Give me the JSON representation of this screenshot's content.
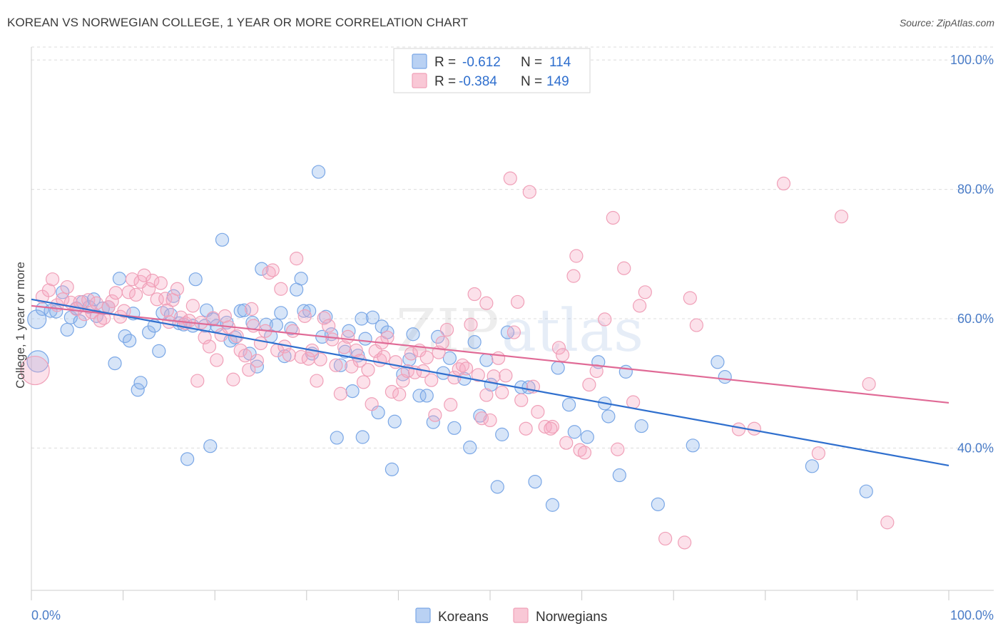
{
  "title": "KOREAN VS NORWEGIAN COLLEGE, 1 YEAR OR MORE CORRELATION CHART",
  "source": "Source: ZipAtlas.com",
  "watermark": {
    "zip": "ZIP",
    "atlas": "atlas"
  },
  "colors": {
    "korean": "#7aa7e6",
    "korean_line": "#2f6fce",
    "norwegian": "#f0a0b8",
    "norwegian_line": "#e06a96",
    "tick_label": "#4a7cc7"
  },
  "legend": {
    "rows": [
      {
        "r_label": "R =",
        "r_value": "-0.612",
        "n_label": "N =",
        "n_value": "114"
      },
      {
        "r_label": "R =",
        "r_value": "-0.384",
        "n_label": "N =",
        "n_value": "149"
      }
    ]
  },
  "bottom_legend": [
    "Koreans",
    "Norwegians"
  ],
  "chart_data": {
    "type": "scatter",
    "xlabel": "",
    "ylabel": "College, 1 year or more",
    "xlim": [
      0,
      100
    ],
    "ylim": [
      18,
      102
    ],
    "x_tick_labels": [
      "0.0%",
      "100.0%"
    ],
    "y_ticks": [
      40,
      60,
      80,
      100
    ],
    "y_tick_labels": [
      "40.0%",
      "60.0%",
      "80.0%",
      "100.0%"
    ],
    "grid": "horizontal dashed",
    "legend_position": "top-center",
    "series": [
      {
        "name": "Koreans",
        "r": -0.612,
        "n": 114,
        "trend": {
          "x": [
            0,
            100
          ],
          "y": [
            63.0,
            37.3
          ]
        },
        "points": [
          [
            0.6,
            59.9
          ],
          [
            0.7,
            53.4
          ],
          [
            1.2,
            61.5
          ],
          [
            2.1,
            61.2
          ],
          [
            2.7,
            61.1
          ],
          [
            3.4,
            64.1
          ],
          [
            3.9,
            58.3
          ],
          [
            4.3,
            60.2
          ],
          [
            4.9,
            61.6
          ],
          [
            5.3,
            59.6
          ],
          [
            5.6,
            62.6
          ],
          [
            6.3,
            61.8
          ],
          [
            6.8,
            63.0
          ],
          [
            7.1,
            60.4
          ],
          [
            7.8,
            61.6
          ],
          [
            8.4,
            61.8
          ],
          [
            9.1,
            53.1
          ],
          [
            9.6,
            66.2
          ],
          [
            10.2,
            57.3
          ],
          [
            10.7,
            56.6
          ],
          [
            11.1,
            60.8
          ],
          [
            11.6,
            49.0
          ],
          [
            11.9,
            50.1
          ],
          [
            12.8,
            57.9
          ],
          [
            13.4,
            58.9
          ],
          [
            13.9,
            55.0
          ],
          [
            14.3,
            60.9
          ],
          [
            15.2,
            60.6
          ],
          [
            15.5,
            63.5
          ],
          [
            16.1,
            59.3
          ],
          [
            16.6,
            59.1
          ],
          [
            17.0,
            38.3
          ],
          [
            17.6,
            58.9
          ],
          [
            17.9,
            66.1
          ],
          [
            18.9,
            58.9
          ],
          [
            19.1,
            61.3
          ],
          [
            19.5,
            40.3
          ],
          [
            19.8,
            59.9
          ],
          [
            20.2,
            58.9
          ],
          [
            20.8,
            72.2
          ],
          [
            21.3,
            59.4
          ],
          [
            21.7,
            56.6
          ],
          [
            22.2,
            57.1
          ],
          [
            22.8,
            61.2
          ],
          [
            23.2,
            61.3
          ],
          [
            23.8,
            54.6
          ],
          [
            24.1,
            59.4
          ],
          [
            24.6,
            52.6
          ],
          [
            25.1,
            67.7
          ],
          [
            25.6,
            59.1
          ],
          [
            26.1,
            57.3
          ],
          [
            26.7,
            59.0
          ],
          [
            27.2,
            60.9
          ],
          [
            27.6,
            54.2
          ],
          [
            28.3,
            58.5
          ],
          [
            28.9,
            64.5
          ],
          [
            29.4,
            66.2
          ],
          [
            29.7,
            61.2
          ],
          [
            30.3,
            61.2
          ],
          [
            30.6,
            54.6
          ],
          [
            31.3,
            82.7
          ],
          [
            31.7,
            57.2
          ],
          [
            32.1,
            60.3
          ],
          [
            32.7,
            57.6
          ],
          [
            33.3,
            41.6
          ],
          [
            33.7,
            52.8
          ],
          [
            34.2,
            54.9
          ],
          [
            34.6,
            58.1
          ],
          [
            35.0,
            48.8
          ],
          [
            35.6,
            54.3
          ],
          [
            36.1,
            41.7
          ],
          [
            36.4,
            56.9
          ],
          [
            37.2,
            60.2
          ],
          [
            37.8,
            45.5
          ],
          [
            38.2,
            58.8
          ],
          [
            38.8,
            57.9
          ],
          [
            39.3,
            36.7
          ],
          [
            39.6,
            44.1
          ],
          [
            40.5,
            51.4
          ],
          [
            41.2,
            53.7
          ],
          [
            41.6,
            57.6
          ],
          [
            42.3,
            48.1
          ],
          [
            43.1,
            48.1
          ],
          [
            43.8,
            44.0
          ],
          [
            44.3,
            57.2
          ],
          [
            44.9,
            51.6
          ],
          [
            45.6,
            53.9
          ],
          [
            46.1,
            43.1
          ],
          [
            47.2,
            50.7
          ],
          [
            47.8,
            40.1
          ],
          [
            48.3,
            56.4
          ],
          [
            48.9,
            45.0
          ],
          [
            49.6,
            53.6
          ],
          [
            50.1,
            49.8
          ],
          [
            50.8,
            34.0
          ],
          [
            51.3,
            42.1
          ],
          [
            51.9,
            57.9
          ],
          [
            53.4,
            49.4
          ],
          [
            54.2,
            49.4
          ],
          [
            54.9,
            34.8
          ],
          [
            56.8,
            31.2
          ],
          [
            57.4,
            52.4
          ],
          [
            58.6,
            46.7
          ],
          [
            59.2,
            42.5
          ],
          [
            60.6,
            41.7
          ],
          [
            61.8,
            53.3
          ],
          [
            62.5,
            46.9
          ],
          [
            62.9,
            44.9
          ],
          [
            64.1,
            35.8
          ],
          [
            64.8,
            51.8
          ],
          [
            66.5,
            43.4
          ],
          [
            68.3,
            31.3
          ],
          [
            72.1,
            40.4
          ],
          [
            74.8,
            53.3
          ],
          [
            75.6,
            51.0
          ],
          [
            85.1,
            37.2
          ],
          [
            91.0,
            33.3
          ],
          [
            36.0,
            60.0
          ]
        ]
      },
      {
        "name": "Norwegians",
        "r": -0.384,
        "n": 149,
        "trend": {
          "x": [
            0,
            100
          ],
          "y": [
            62.0,
            47.0
          ]
        },
        "points": [
          [
            0.4,
            52.0
          ],
          [
            1.2,
            63.4
          ],
          [
            1.9,
            64.4
          ],
          [
            2.3,
            66.1
          ],
          [
            2.8,
            62.1
          ],
          [
            3.4,
            63.0
          ],
          [
            3.9,
            64.9
          ],
          [
            4.3,
            62.5
          ],
          [
            4.9,
            61.5
          ],
          [
            5.3,
            62.6
          ],
          [
            5.8,
            60.7
          ],
          [
            6.2,
            62.9
          ],
          [
            6.6,
            61.0
          ],
          [
            7.1,
            62.4
          ],
          [
            7.5,
            59.7
          ],
          [
            7.9,
            60.1
          ],
          [
            8.4,
            61.8
          ],
          [
            8.8,
            62.7
          ],
          [
            9.2,
            64.0
          ],
          [
            9.7,
            60.3
          ],
          [
            10.1,
            61.2
          ],
          [
            10.6,
            64.1
          ],
          [
            11.0,
            66.1
          ],
          [
            11.4,
            63.7
          ],
          [
            11.9,
            65.7
          ],
          [
            12.3,
            66.7
          ],
          [
            12.8,
            64.6
          ],
          [
            13.2,
            65.9
          ],
          [
            13.7,
            63.0
          ],
          [
            14.1,
            65.5
          ],
          [
            14.6,
            63.1
          ],
          [
            15.0,
            59.5
          ],
          [
            15.4,
            62.9
          ],
          [
            15.9,
            64.6
          ],
          [
            16.3,
            60.2
          ],
          [
            16.8,
            59.3
          ],
          [
            17.2,
            59.7
          ],
          [
            17.6,
            62.0
          ],
          [
            18.1,
            50.4
          ],
          [
            18.5,
            59.4
          ],
          [
            18.9,
            57.1
          ],
          [
            19.4,
            55.7
          ],
          [
            19.8,
            60.1
          ],
          [
            20.2,
            53.6
          ],
          [
            20.7,
            57.5
          ],
          [
            21.1,
            60.4
          ],
          [
            21.5,
            58.7
          ],
          [
            22.0,
            50.6
          ],
          [
            22.4,
            57.3
          ],
          [
            22.8,
            55.1
          ],
          [
            23.3,
            54.3
          ],
          [
            23.7,
            52.1
          ],
          [
            24.2,
            58.9
          ],
          [
            24.6,
            53.5
          ],
          [
            25.0,
            56.2
          ],
          [
            25.5,
            58.1
          ],
          [
            25.9,
            67.1
          ],
          [
            26.3,
            67.5
          ],
          [
            26.8,
            55.1
          ],
          [
            27.2,
            64.6
          ],
          [
            27.6,
            55.7
          ],
          [
            28.1,
            54.4
          ],
          [
            28.5,
            58.1
          ],
          [
            28.9,
            69.3
          ],
          [
            29.4,
            54.1
          ],
          [
            29.8,
            60.4
          ],
          [
            30.2,
            53.8
          ],
          [
            30.6,
            55.1
          ],
          [
            31.1,
            50.4
          ],
          [
            31.5,
            53.7
          ],
          [
            31.9,
            60.1
          ],
          [
            32.4,
            58.9
          ],
          [
            32.8,
            56.8
          ],
          [
            33.2,
            52.8
          ],
          [
            33.7,
            48.4
          ],
          [
            34.1,
            55.6
          ],
          [
            34.5,
            57.2
          ],
          [
            34.9,
            52.6
          ],
          [
            35.4,
            55.1
          ],
          [
            35.8,
            53.5
          ],
          [
            36.2,
            50.2
          ],
          [
            36.7,
            52.1
          ],
          [
            37.1,
            46.8
          ],
          [
            37.5,
            55.0
          ],
          [
            38.0,
            53.6
          ],
          [
            38.4,
            54.1
          ],
          [
            38.8,
            57.1
          ],
          [
            39.3,
            48.7
          ],
          [
            39.7,
            53.3
          ],
          [
            40.1,
            48.3
          ],
          [
            40.5,
            50.4
          ],
          [
            41.0,
            51.9
          ],
          [
            41.4,
            54.6
          ],
          [
            41.8,
            51.7
          ],
          [
            42.3,
            55.1
          ],
          [
            42.7,
            51.9
          ],
          [
            43.1,
            54.0
          ],
          [
            43.6,
            50.5
          ],
          [
            44.0,
            45.1
          ],
          [
            44.4,
            54.8
          ],
          [
            44.8,
            56.3
          ],
          [
            45.3,
            58.3
          ],
          [
            45.7,
            46.7
          ],
          [
            46.1,
            50.9
          ],
          [
            46.6,
            52.2
          ],
          [
            47.0,
            52.8
          ],
          [
            47.4,
            52.3
          ],
          [
            47.9,
            59.1
          ],
          [
            48.3,
            63.8
          ],
          [
            48.7,
            51.3
          ],
          [
            49.1,
            44.6
          ],
          [
            49.6,
            48.2
          ],
          [
            50.0,
            44.3
          ],
          [
            50.4,
            51.1
          ],
          [
            50.9,
            53.9
          ],
          [
            51.3,
            48.6
          ],
          [
            51.7,
            51.2
          ],
          [
            52.2,
            81.7
          ],
          [
            52.6,
            57.9
          ],
          [
            53.0,
            62.6
          ],
          [
            53.4,
            47.4
          ],
          [
            53.9,
            43.0
          ],
          [
            54.3,
            79.6
          ],
          [
            54.7,
            49.5
          ],
          [
            55.2,
            45.6
          ],
          [
            56.0,
            43.3
          ],
          [
            56.8,
            43.3
          ],
          [
            57.5,
            55.5
          ],
          [
            58.3,
            40.8
          ],
          [
            59.1,
            66.6
          ],
          [
            59.4,
            69.7
          ],
          [
            59.8,
            39.7
          ],
          [
            60.3,
            39.3
          ],
          [
            60.8,
            49.8
          ],
          [
            61.6,
            51.9
          ],
          [
            62.5,
            59.9
          ],
          [
            63.4,
            75.6
          ],
          [
            63.9,
            39.8
          ],
          [
            64.6,
            67.8
          ],
          [
            65.6,
            47.1
          ],
          [
            66.3,
            62.0
          ],
          [
            66.9,
            64.1
          ],
          [
            69.1,
            26.0
          ],
          [
            71.2,
            25.4
          ],
          [
            71.8,
            63.2
          ],
          [
            72.5,
            59.0
          ],
          [
            77.1,
            42.9
          ],
          [
            78.8,
            43.0
          ],
          [
            82.0,
            80.9
          ],
          [
            85.8,
            39.2
          ],
          [
            88.3,
            75.8
          ],
          [
            91.3,
            49.9
          ],
          [
            93.3,
            28.5
          ],
          [
            57.9,
            54.4
          ],
          [
            49.6,
            62.4
          ],
          [
            38.2,
            56.3
          ],
          [
            24.0,
            61.5
          ],
          [
            14.8,
            61.3
          ],
          [
            56.6,
            43.0
          ]
        ]
      }
    ]
  }
}
